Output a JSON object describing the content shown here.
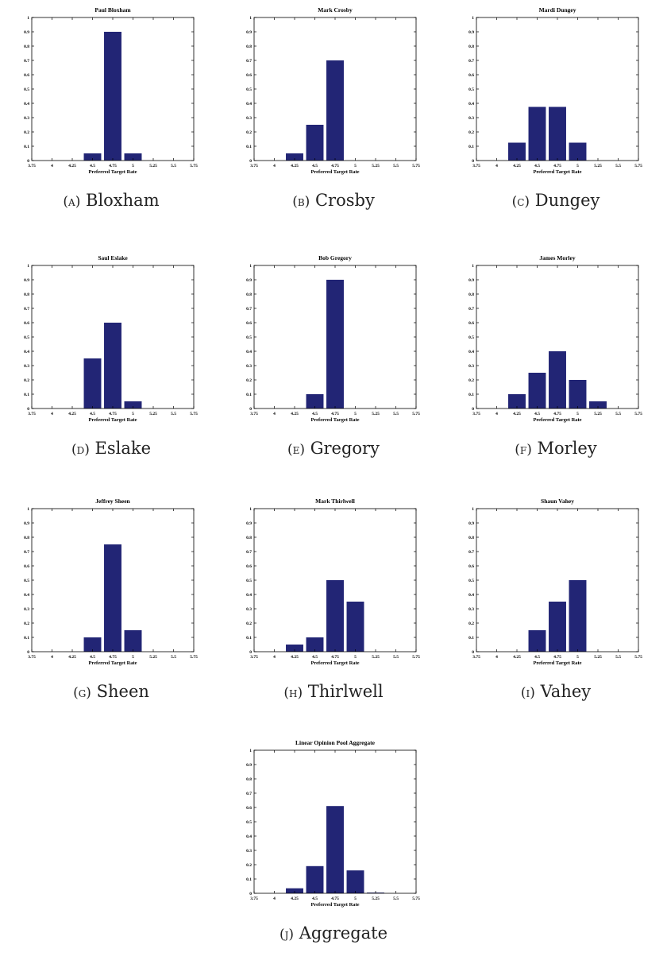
{
  "bar_color": "#222575",
  "axis": {
    "xlabel": "Preferred Target Rate",
    "xticks": [
      "3.75",
      "4",
      "4.25",
      "4.5",
      "4.75",
      "5",
      "5.25",
      "5.5",
      "5.75"
    ],
    "yticks": [
      "0",
      "0.1",
      "0.2",
      "0.3",
      "0.4",
      "0.5",
      "0.6",
      "0.7",
      "0.8",
      "0.9",
      "1"
    ]
  },
  "chart_data": [
    {
      "type": "bar",
      "title": "Paul Bloxham",
      "caption_label": "(a)",
      "caption_name": "Bloxham",
      "xlabel": "Preferred Target Rate",
      "xlim": [
        3.75,
        5.75
      ],
      "ylim": [
        0,
        1
      ],
      "categories": [
        4.5,
        4.75,
        5
      ],
      "values": [
        0.05,
        0.9,
        0.05
      ]
    },
    {
      "type": "bar",
      "title": "Mark Crosby",
      "caption_label": "(b)",
      "caption_name": "Crosby",
      "xlabel": "Preferred Target Rate",
      "xlim": [
        3.75,
        5.75
      ],
      "ylim": [
        0,
        1
      ],
      "categories": [
        4.25,
        4.5,
        4.75
      ],
      "values": [
        0.05,
        0.25,
        0.7
      ]
    },
    {
      "type": "bar",
      "title": "Mardi Dungey",
      "caption_label": "(c)",
      "caption_name": "Dungey",
      "xlabel": "Preferred Target Rate",
      "xlim": [
        3.75,
        5.75
      ],
      "ylim": [
        0,
        1
      ],
      "categories": [
        4.25,
        4.5,
        4.75,
        5
      ],
      "values": [
        0.125,
        0.375,
        0.375,
        0.125
      ]
    },
    {
      "type": "bar",
      "title": "Saul Eslake",
      "caption_label": "(d)",
      "caption_name": "Eslake",
      "xlabel": "Preferred Target Rate",
      "xlim": [
        3.75,
        5.75
      ],
      "ylim": [
        0,
        1
      ],
      "categories": [
        4.5,
        4.75,
        5
      ],
      "values": [
        0.35,
        0.6,
        0.05
      ]
    },
    {
      "type": "bar",
      "title": "Bob Gregory",
      "caption_label": "(e)",
      "caption_name": "Gregory",
      "xlabel": "Preferred Target Rate",
      "xlim": [
        3.75,
        5.75
      ],
      "ylim": [
        0,
        1
      ],
      "categories": [
        4.5,
        4.75
      ],
      "values": [
        0.1,
        0.9
      ]
    },
    {
      "type": "bar",
      "title": "James Morley",
      "caption_label": "(f)",
      "caption_name": "Morley",
      "xlabel": "Preferred Target Rate",
      "xlim": [
        3.75,
        5.75
      ],
      "ylim": [
        0,
        1
      ],
      "categories": [
        4.25,
        4.5,
        4.75,
        5,
        5.25
      ],
      "values": [
        0.1,
        0.25,
        0.4,
        0.2,
        0.05
      ]
    },
    {
      "type": "bar",
      "title": "Jeffrey Sheen",
      "caption_label": "(g)",
      "caption_name": "Sheen",
      "xlabel": "Preferred Target Rate",
      "xlim": [
        3.75,
        5.75
      ],
      "ylim": [
        0,
        1
      ],
      "categories": [
        4.5,
        4.75,
        5
      ],
      "values": [
        0.1,
        0.75,
        0.15
      ]
    },
    {
      "type": "bar",
      "title": "Mark Thirlwell",
      "caption_label": "(h)",
      "caption_name": "Thirlwell",
      "xlabel": "Preferred Target Rate",
      "xlim": [
        3.75,
        5.75
      ],
      "ylim": [
        0,
        1
      ],
      "categories": [
        4.25,
        4.5,
        4.75,
        5
      ],
      "values": [
        0.05,
        0.1,
        0.5,
        0.35
      ]
    },
    {
      "type": "bar",
      "title": "Shaun Vahey",
      "caption_label": "(i)",
      "caption_name": "Vahey",
      "xlabel": "Preferred Target Rate",
      "xlim": [
        3.75,
        5.75
      ],
      "ylim": [
        0,
        1
      ],
      "categories": [
        4.5,
        4.75,
        5
      ],
      "values": [
        0.15,
        0.35,
        0.5
      ]
    },
    {
      "type": "bar",
      "title": "Linear Opinion Pool Aggregate",
      "caption_label": "(j)",
      "caption_name": "Aggregate",
      "xlabel": "Preferred Target Rate",
      "xlim": [
        3.75,
        5.75
      ],
      "ylim": [
        0,
        1
      ],
      "categories": [
        4.25,
        4.5,
        4.75,
        5,
        5.25
      ],
      "values": [
        0.035,
        0.19,
        0.61,
        0.16,
        0.005
      ]
    }
  ]
}
